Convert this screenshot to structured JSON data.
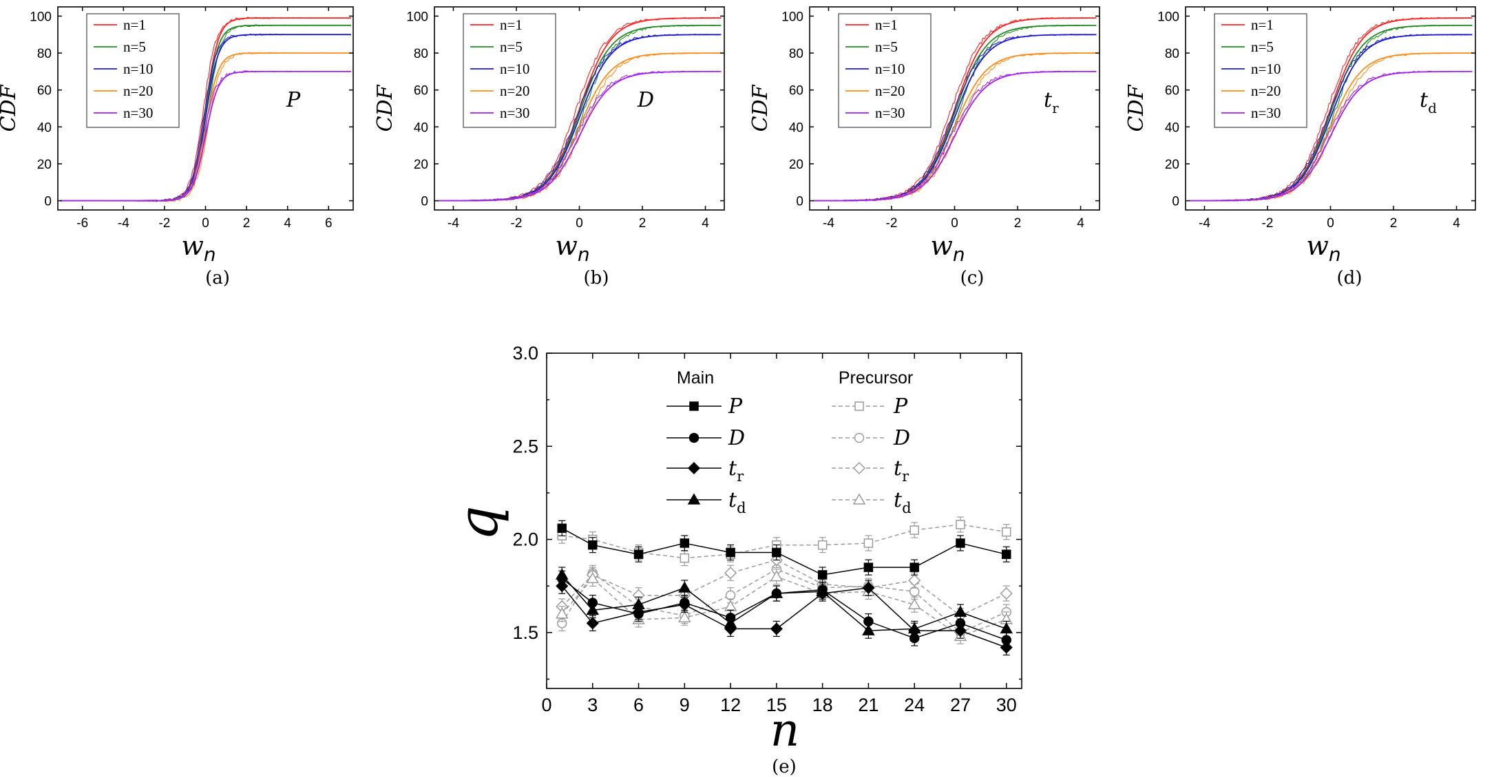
{
  "chart_data": [
    {
      "panel": "(a)",
      "type": "line",
      "title": "",
      "annotation": "P",
      "annotation_sub": "",
      "ylabel": "CDF",
      "xlabel": "w",
      "xlabel_sub": "n",
      "xlim": [
        -7.2,
        7.2
      ],
      "ylim": [
        -5,
        105
      ],
      "xticks": [
        -6,
        -4,
        -2,
        0,
        2,
        4,
        6
      ],
      "yticks": [
        0,
        20,
        40,
        60,
        80,
        100
      ],
      "steep": 3.2,
      "series": [
        {
          "name": "n=1",
          "color": "#ff2020",
          "plateau": 99
        },
        {
          "name": "n=5",
          "color": "#228b22",
          "plateau": 95
        },
        {
          "name": "n=10",
          "color": "#1a1ad0",
          "plateau": 90
        },
        {
          "name": "n=20",
          "color": "#ff8c1a",
          "plateau": 80
        },
        {
          "name": "n=30",
          "color": "#a020f0",
          "plateau": 70
        }
      ]
    },
    {
      "panel": "(b)",
      "type": "line",
      "title": "",
      "annotation": "D",
      "annotation_sub": "",
      "ylabel": "CDF",
      "xlabel": "w",
      "xlabel_sub": "n",
      "xlim": [
        -4.6,
        4.6
      ],
      "ylim": [
        -5,
        105
      ],
      "xticks": [
        -4,
        -2,
        0,
        2,
        4
      ],
      "yticks": [
        0,
        20,
        40,
        60,
        80,
        100
      ],
      "steep": 2.0,
      "series": [
        {
          "name": "n=1",
          "color": "#ff2020",
          "plateau": 99
        },
        {
          "name": "n=5",
          "color": "#228b22",
          "plateau": 95
        },
        {
          "name": "n=10",
          "color": "#1a1ad0",
          "plateau": 90
        },
        {
          "name": "n=20",
          "color": "#ff8c1a",
          "plateau": 80
        },
        {
          "name": "n=30",
          "color": "#a020f0",
          "plateau": 70
        }
      ]
    },
    {
      "panel": "(c)",
      "type": "line",
      "title": "",
      "annotation": "t",
      "annotation_sub": "r",
      "ylabel": "CDF",
      "xlabel": "w",
      "xlabel_sub": "n",
      "xlim": [
        -4.6,
        4.6
      ],
      "ylim": [
        -5,
        105
      ],
      "xticks": [
        -4,
        -2,
        0,
        2,
        4
      ],
      "yticks": [
        0,
        20,
        40,
        60,
        80,
        100
      ],
      "steep": 2.0,
      "series": [
        {
          "name": "n=1",
          "color": "#ff2020",
          "plateau": 99
        },
        {
          "name": "n=5",
          "color": "#228b22",
          "plateau": 95
        },
        {
          "name": "n=10",
          "color": "#1a1ad0",
          "plateau": 90
        },
        {
          "name": "n=20",
          "color": "#ff8c1a",
          "plateau": 80
        },
        {
          "name": "n=30",
          "color": "#a020f0",
          "plateau": 70
        }
      ]
    },
    {
      "panel": "(d)",
      "type": "line",
      "title": "",
      "annotation": "t",
      "annotation_sub": "d",
      "ylabel": "CDF",
      "xlabel": "w",
      "xlabel_sub": "n",
      "xlim": [
        -4.6,
        4.6
      ],
      "ylim": [
        -5,
        105
      ],
      "xticks": [
        -4,
        -2,
        0,
        2,
        4
      ],
      "yticks": [
        0,
        20,
        40,
        60,
        80,
        100
      ],
      "steep": 2.0,
      "series": [
        {
          "name": "n=1",
          "color": "#ff2020",
          "plateau": 99
        },
        {
          "name": "n=5",
          "color": "#228b22",
          "plateau": 95
        },
        {
          "name": "n=10",
          "color": "#1a1ad0",
          "plateau": 90
        },
        {
          "name": "n=20",
          "color": "#ff8c1a",
          "plateau": 80
        },
        {
          "name": "n=30",
          "color": "#a020f0",
          "plateau": 70
        }
      ]
    },
    {
      "panel": "(e)",
      "type": "line",
      "title": "",
      "ylabel": "q",
      "xlabel": "n",
      "xlim": [
        0,
        31
      ],
      "ylim": [
        1.2,
        3.0
      ],
      "xticks": [
        0,
        3,
        6,
        9,
        12,
        15,
        18,
        21,
        24,
        27,
        30
      ],
      "yticks": [
        "1.5",
        "2.0",
        "2.5",
        "3.0"
      ],
      "x": [
        1,
        3,
        6,
        9,
        12,
        15,
        18,
        21,
        24,
        27,
        30
      ],
      "legend_headers": [
        "Main",
        "Precursor"
      ],
      "series": [
        {
          "name": "P",
          "sub": "",
          "group": "Main",
          "marker": "square",
          "values": [
            2.06,
            1.97,
            1.92,
            1.98,
            1.93,
            1.93,
            1.81,
            1.85,
            1.85,
            1.98,
            1.92
          ]
        },
        {
          "name": "D",
          "sub": "",
          "group": "Main",
          "marker": "circle",
          "values": [
            1.79,
            1.66,
            1.6,
            1.66,
            1.58,
            1.71,
            1.73,
            1.56,
            1.47,
            1.55,
            1.46
          ]
        },
        {
          "name": "t",
          "sub": "r",
          "group": "Main",
          "marker": "diamond",
          "values": [
            1.75,
            1.55,
            1.61,
            1.65,
            1.52,
            1.52,
            1.71,
            1.74,
            1.51,
            1.51,
            1.42
          ]
        },
        {
          "name": "t",
          "sub": "d",
          "group": "Main",
          "marker": "triangle",
          "values": [
            1.81,
            1.62,
            1.65,
            1.74,
            1.55,
            1.71,
            1.72,
            1.51,
            1.52,
            1.61,
            1.52
          ]
        },
        {
          "name": "P",
          "sub": "",
          "group": "Precursor",
          "marker": "square",
          "values": [
            2.02,
            2.0,
            1.93,
            1.9,
            1.92,
            1.97,
            1.97,
            1.98,
            2.05,
            2.08,
            2.04
          ]
        },
        {
          "name": "D",
          "sub": "",
          "group": "Precursor",
          "marker": "circle",
          "values": [
            1.55,
            1.82,
            1.64,
            1.59,
            1.7,
            1.84,
            1.74,
            1.75,
            1.72,
            1.5,
            1.61
          ]
        },
        {
          "name": "t",
          "sub": "r",
          "group": "Precursor",
          "marker": "diamond",
          "values": [
            1.64,
            1.81,
            1.7,
            1.7,
            1.82,
            1.89,
            1.76,
            1.74,
            1.78,
            1.59,
            1.71
          ]
        },
        {
          "name": "t",
          "sub": "d",
          "group": "Precursor",
          "marker": "triangle",
          "values": [
            1.6,
            1.79,
            1.57,
            1.58,
            1.64,
            1.8,
            1.71,
            1.72,
            1.65,
            1.48,
            1.57
          ]
        }
      ]
    }
  ],
  "captions": [
    "(a)",
    "(b)",
    "(c)",
    "(d)",
    "(e)"
  ]
}
